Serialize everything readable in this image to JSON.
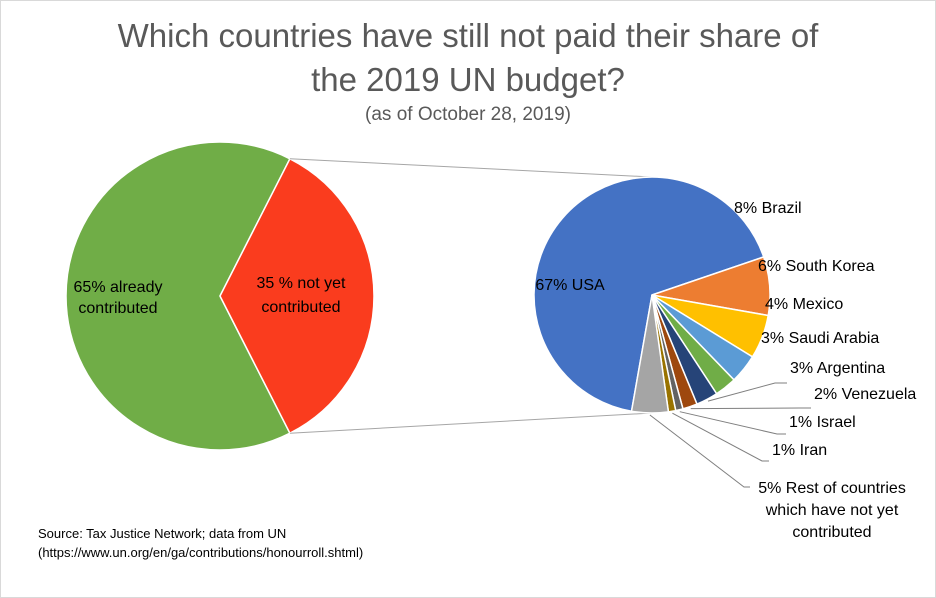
{
  "chart_data": {
    "type": "pie",
    "title": "Which countries have still not paid their share of the 2019 UN budget?",
    "title_lines": [
      "Which countries have still not paid their share of",
      "the 2019 UN budget?"
    ],
    "subtitle": "(as of October 28, 2019)",
    "source_lines": [
      "Source: Tax Justice Network; data from UN",
      "(https://www.un.org/en/ga/contributions/honourroll.shtml)"
    ],
    "main_pie": {
      "slices": [
        {
          "label_lines": [
            "65% already",
            "contributed"
          ],
          "value": 65,
          "color": "#70ad47"
        },
        {
          "label_lines": [
            "35 % not yet",
            "contributed"
          ],
          "value": 35,
          "color": "#fa3c1e"
        }
      ]
    },
    "secondary_pie": {
      "breakdown_of": "35 % not yet contributed",
      "slices": [
        {
          "label": "67% USA",
          "value": 67,
          "color": "#4472c4"
        },
        {
          "label": "8% Brazil",
          "value": 8,
          "color": "#ed7d31"
        },
        {
          "label": "6% South Korea",
          "value": 6,
          "color": "#ffc000"
        },
        {
          "label": "4% Mexico",
          "value": 4,
          "color": "#5b9bd5"
        },
        {
          "label": "3% Saudi Arabia",
          "value": 3,
          "color": "#70ad47"
        },
        {
          "label": "3% Argentina",
          "value": 3,
          "color": "#264478"
        },
        {
          "label": "2% Venezuela",
          "value": 2,
          "color": "#9e480e"
        },
        {
          "label": "1% Israel",
          "value": 1,
          "color": "#636363"
        },
        {
          "label": "1% Iran",
          "value": 1,
          "color": "#997300"
        },
        {
          "label_lines": [
            "5% Rest of countries",
            "which have not yet",
            "contributed"
          ],
          "value": 5,
          "color": "#a5a5a5"
        }
      ]
    }
  }
}
